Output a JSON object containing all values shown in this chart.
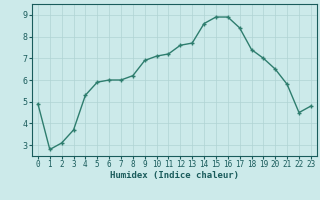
{
  "x": [
    0,
    1,
    2,
    3,
    4,
    5,
    6,
    7,
    8,
    9,
    10,
    11,
    12,
    13,
    14,
    15,
    16,
    17,
    18,
    19,
    20,
    21,
    22,
    23
  ],
  "y": [
    4.9,
    2.8,
    3.1,
    3.7,
    5.3,
    5.9,
    6.0,
    6.0,
    6.2,
    6.9,
    7.1,
    7.2,
    7.6,
    7.7,
    8.6,
    8.9,
    8.9,
    8.4,
    7.4,
    7.0,
    6.5,
    5.8,
    4.5,
    4.8
  ],
  "line_color": "#2e7d6e",
  "marker": "+",
  "marker_color": "#2e7d6e",
  "bg_color": "#cceaea",
  "grid_color": "#b0d4d4",
  "xlabel": "Humidex (Indice chaleur)",
  "xlabel_color": "#1a5c5c",
  "tick_color": "#1a5c5c",
  "axis_color": "#1a5c5c",
  "ylim": [
    2.5,
    9.5
  ],
  "xlim": [
    -0.5,
    23.5
  ],
  "yticks": [
    3,
    4,
    5,
    6,
    7,
    8,
    9
  ],
  "xticks": [
    0,
    1,
    2,
    3,
    4,
    5,
    6,
    7,
    8,
    9,
    10,
    11,
    12,
    13,
    14,
    15,
    16,
    17,
    18,
    19,
    20,
    21,
    22,
    23
  ],
  "linewidth": 1.0,
  "markersize": 3.5,
  "tick_fontsize": 5.5,
  "xlabel_fontsize": 6.5
}
